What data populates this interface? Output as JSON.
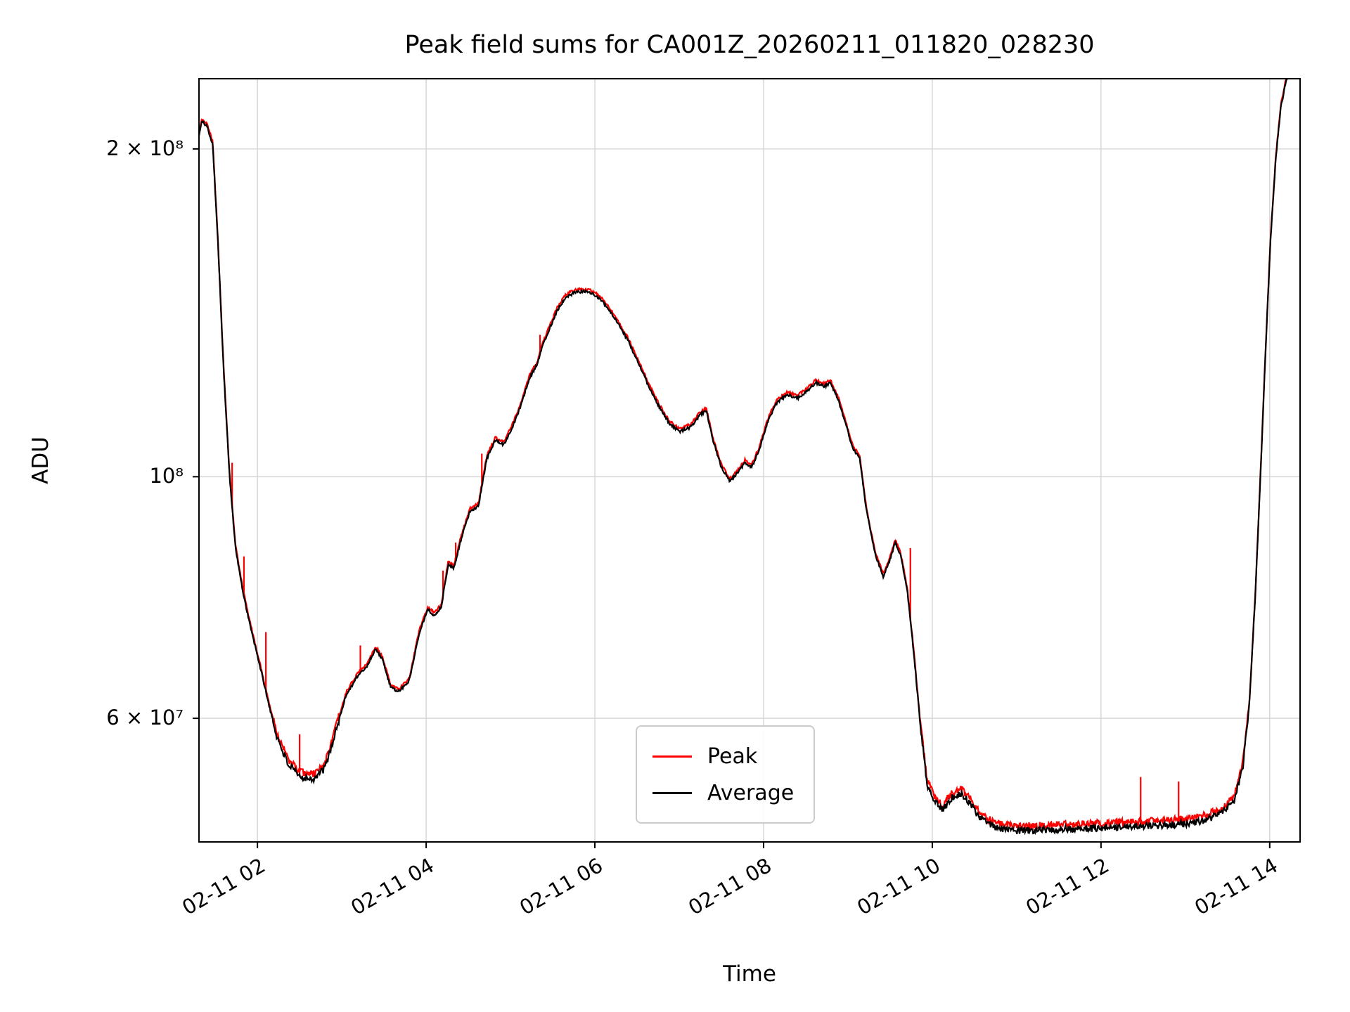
{
  "chart_data": {
    "type": "line",
    "title": "Peak field sums for CA001Z_20260211_011820_028230",
    "xlabel": "Time",
    "ylabel": "ADU",
    "yscale": "log",
    "background_color": "#ffffff",
    "grid": true,
    "grid_color": "#d9d9d9",
    "ylim": [
      46200000,
      232000000
    ],
    "xlim_hours": [
      1.307,
      14.36
    ],
    "y_ticks": [
      {
        "value": 60000000,
        "label": "6 × 10⁷"
      },
      {
        "value": 100000000,
        "label": "10⁸"
      },
      {
        "value": 200000000,
        "label": "2 × 10⁸"
      }
    ],
    "x_ticks": [
      {
        "hour": 2,
        "label": "02-11 02"
      },
      {
        "hour": 4,
        "label": "02-11 04"
      },
      {
        "hour": 6,
        "label": "02-11 06"
      },
      {
        "hour": 8,
        "label": "02-11 08"
      },
      {
        "hour": 10,
        "label": "02-11 10"
      },
      {
        "hour": 12,
        "label": "02-11 12"
      },
      {
        "hour": 14,
        "label": "02-11 14"
      }
    ],
    "legend": {
      "position": "lower center",
      "entries": [
        {
          "name": "Peak",
          "color": "#ff0000"
        },
        {
          "name": "Average",
          "color": "#000000"
        }
      ]
    },
    "units": "ADU, values stored in units of 1e7",
    "series": [
      {
        "name": "Average",
        "color": "#000000",
        "points_1e7": [
          [
            1.31,
            20.6
          ],
          [
            1.34,
            21.2
          ],
          [
            1.4,
            21.0
          ],
          [
            1.47,
            20.2
          ],
          [
            1.53,
            16.5
          ],
          [
            1.6,
            12.5
          ],
          [
            1.67,
            10.0
          ],
          [
            1.74,
            8.6
          ],
          [
            1.82,
            7.9
          ],
          [
            1.88,
            7.5
          ],
          [
            1.95,
            7.1
          ],
          [
            2.03,
            6.7
          ],
          [
            2.12,
            6.25
          ],
          [
            2.22,
            5.8
          ],
          [
            2.36,
            5.45
          ],
          [
            2.5,
            5.3
          ],
          [
            2.67,
            5.28
          ],
          [
            2.8,
            5.4
          ],
          [
            2.92,
            5.8
          ],
          [
            3.05,
            6.3
          ],
          [
            3.18,
            6.55
          ],
          [
            3.3,
            6.7
          ],
          [
            3.4,
            6.95
          ],
          [
            3.48,
            6.8
          ],
          [
            3.58,
            6.4
          ],
          [
            3.68,
            6.35
          ],
          [
            3.8,
            6.5
          ],
          [
            3.92,
            7.2
          ],
          [
            4.02,
            7.55
          ],
          [
            4.1,
            7.45
          ],
          [
            4.18,
            7.6
          ],
          [
            4.26,
            8.3
          ],
          [
            4.33,
            8.25
          ],
          [
            4.42,
            8.8
          ],
          [
            4.52,
            9.3
          ],
          [
            4.62,
            9.4
          ],
          [
            4.72,
            10.4
          ],
          [
            4.82,
            10.8
          ],
          [
            4.92,
            10.7
          ],
          [
            5.02,
            11.1
          ],
          [
            5.12,
            11.6
          ],
          [
            5.22,
            12.3
          ],
          [
            5.32,
            12.7
          ],
          [
            5.38,
            13.2
          ],
          [
            5.45,
            13.6
          ],
          [
            5.55,
            14.2
          ],
          [
            5.65,
            14.6
          ],
          [
            5.75,
            14.75
          ],
          [
            5.85,
            14.8
          ],
          [
            5.95,
            14.75
          ],
          [
            6.05,
            14.6
          ],
          [
            6.15,
            14.3
          ],
          [
            6.28,
            13.8
          ],
          [
            6.4,
            13.3
          ],
          [
            6.52,
            12.7
          ],
          [
            6.64,
            12.1
          ],
          [
            6.76,
            11.6
          ],
          [
            6.88,
            11.2
          ],
          [
            7.0,
            11.0
          ],
          [
            7.13,
            11.1
          ],
          [
            7.25,
            11.4
          ],
          [
            7.32,
            11.5
          ],
          [
            7.4,
            10.8
          ],
          [
            7.5,
            10.2
          ],
          [
            7.6,
            9.9
          ],
          [
            7.7,
            10.1
          ],
          [
            7.78,
            10.3
          ],
          [
            7.86,
            10.2
          ],
          [
            7.95,
            10.6
          ],
          [
            8.06,
            11.3
          ],
          [
            8.16,
            11.7
          ],
          [
            8.28,
            11.9
          ],
          [
            8.4,
            11.8
          ],
          [
            8.52,
            12.0
          ],
          [
            8.62,
            12.2
          ],
          [
            8.72,
            12.1
          ],
          [
            8.79,
            12.2
          ],
          [
            8.88,
            11.8
          ],
          [
            8.97,
            11.2
          ],
          [
            9.06,
            10.6
          ],
          [
            9.14,
            10.4
          ],
          [
            9.22,
            9.3
          ],
          [
            9.32,
            8.5
          ],
          [
            9.42,
            8.1
          ],
          [
            9.5,
            8.4
          ],
          [
            9.56,
            8.7
          ],
          [
            9.62,
            8.5
          ],
          [
            9.7,
            7.9
          ],
          [
            9.78,
            6.9
          ],
          [
            9.86,
            5.9
          ],
          [
            9.94,
            5.2
          ],
          [
            10.02,
            5.05
          ],
          [
            10.12,
            4.95
          ],
          [
            10.24,
            5.08
          ],
          [
            10.34,
            5.12
          ],
          [
            10.44,
            5.02
          ],
          [
            10.55,
            4.88
          ],
          [
            10.66,
            4.8
          ],
          [
            10.8,
            4.75
          ],
          [
            11.0,
            4.73
          ],
          [
            11.4,
            4.74
          ],
          [
            11.8,
            4.75
          ],
          [
            12.2,
            4.77
          ],
          [
            12.6,
            4.78
          ],
          [
            13.0,
            4.8
          ],
          [
            13.25,
            4.84
          ],
          [
            13.45,
            4.92
          ],
          [
            13.58,
            5.05
          ],
          [
            13.68,
            5.4
          ],
          [
            13.76,
            6.2
          ],
          [
            13.83,
            7.8
          ],
          [
            13.89,
            10.0
          ],
          [
            13.95,
            13.0
          ],
          [
            14.01,
            16.5
          ],
          [
            14.07,
            19.5
          ],
          [
            14.13,
            21.8
          ],
          [
            14.2,
            23.2
          ],
          [
            14.28,
            24.0
          ],
          [
            14.36,
            24.2
          ]
        ]
      },
      {
        "name": "Peak",
        "color": "#ff0000",
        "spikes_1e7": [
          [
            1.7,
            10.3
          ],
          [
            1.84,
            8.45
          ],
          [
            2.1,
            7.2
          ],
          [
            2.5,
            5.8
          ],
          [
            3.22,
            7.0
          ],
          [
            4.2,
            8.2
          ],
          [
            4.35,
            8.7
          ],
          [
            4.66,
            10.5
          ],
          [
            5.35,
            13.5
          ],
          [
            9.74,
            8.6
          ],
          [
            12.47,
            5.3
          ],
          [
            12.92,
            5.25
          ]
        ]
      }
    ]
  }
}
